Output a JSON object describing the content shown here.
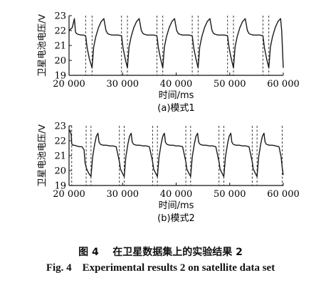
{
  "figure": {
    "caption_cn_number": "图 4",
    "caption_cn_text": "在卫星数据集上的实验结果 2",
    "caption_en_number": "Fig. 4",
    "caption_en_text": "Experimental results 2 on satellite data set"
  },
  "chart_data": [
    {
      "type": "line",
      "subtitle": "(a)模式1",
      "xlabel": "时间/ms",
      "ylabel": "卫星电池电压/V",
      "xlim": [
        20000,
        60000
      ],
      "ylim": [
        19,
        23
      ],
      "xticks": [
        20000,
        30000,
        40000,
        50000,
        60000
      ],
      "xtick_labels": [
        "20 000",
        "30 000",
        "40 000",
        "50 000",
        "60 000"
      ],
      "yticks": [
        19,
        20,
        21,
        22,
        23
      ],
      "ytick_labels": [
        "19",
        "20",
        "21",
        "22",
        "23"
      ],
      "dashed_vlines": [
        23100,
        24300,
        29800,
        30900,
        36400,
        37500,
        43000,
        44100,
        49600,
        50700,
        56200,
        57300
      ],
      "series": [
        {
          "x": [
            20000,
            20300,
            20600,
            21000,
            21200,
            21400,
            21700,
            22200,
            22700,
            23100,
            23400,
            23800,
            24300,
            24600,
            25000,
            25500,
            26000,
            26500,
            26900,
            27200,
            27500,
            28000,
            28600,
            29200,
            29800,
            30100,
            30500,
            30900,
            31200,
            31600,
            32100,
            32600,
            33100,
            33500,
            33800,
            34100,
            34600,
            35200,
            35800,
            36400,
            36700,
            37100,
            37500,
            37800,
            38200,
            38700,
            39200,
            39700,
            40100,
            40400,
            40700,
            41200,
            41800,
            42400,
            43000,
            43300,
            43700,
            44100,
            44400,
            44800,
            45300,
            45800,
            46300,
            46700,
            47000,
            47300,
            47800,
            48400,
            49000,
            49600,
            49900,
            50300,
            50700,
            51000,
            51400,
            51900,
            52400,
            52900,
            53300,
            53600,
            53900,
            54400,
            55000,
            55600,
            56200,
            56500,
            56900,
            57300,
            57600,
            58000,
            58500,
            59000,
            59500,
            59700
          ],
          "y": [
            22.0,
            22.1,
            22.2,
            22.8,
            21.9,
            21.8,
            21.75,
            21.7,
            21.7,
            21.65,
            20.8,
            20.1,
            19.5,
            20.9,
            21.6,
            22.2,
            22.6,
            22.8,
            22.0,
            21.8,
            21.75,
            21.7,
            21.7,
            21.7,
            21.65,
            20.8,
            20.1,
            19.5,
            20.9,
            21.6,
            22.2,
            22.6,
            22.8,
            22.0,
            21.8,
            21.75,
            21.7,
            21.7,
            21.7,
            21.65,
            20.8,
            20.1,
            19.5,
            20.9,
            21.6,
            22.2,
            22.6,
            22.8,
            22.0,
            21.8,
            21.75,
            21.7,
            21.7,
            21.7,
            21.65,
            20.8,
            20.1,
            19.5,
            20.9,
            21.6,
            22.2,
            22.6,
            22.8,
            22.0,
            21.8,
            21.75,
            21.7,
            21.7,
            21.7,
            21.65,
            20.8,
            20.1,
            19.5,
            20.9,
            21.6,
            22.2,
            22.6,
            22.8,
            22.0,
            21.8,
            21.75,
            21.7,
            21.7,
            21.7,
            21.65,
            20.8,
            20.1,
            19.5,
            20.9,
            21.6,
            22.2,
            22.6,
            22.8,
            22.0
          ]
        },
        {
          "x": [
            59700,
            59800,
            59900,
            60000
          ],
          "y": [
            22.0,
            21.2,
            20.3,
            19.5
          ]
        }
      ]
    },
    {
      "type": "line",
      "subtitle": "(b)模式2",
      "xlabel": "时间/ms",
      "ylabel": "卫星电池电压/V",
      "xlim": [
        20000,
        60000
      ],
      "ylim": [
        19,
        23
      ],
      "xticks": [
        20000,
        30000,
        40000,
        50000,
        60000
      ],
      "xtick_labels": [
        "20 000",
        "30 000",
        "40 000",
        "50 000",
        "60 000"
      ],
      "yticks": [
        19,
        20,
        21,
        22,
        23
      ],
      "ytick_labels": [
        "19",
        "20",
        "21",
        "22",
        "23"
      ],
      "dashed_vlines": [
        20500,
        23200,
        24100,
        29400,
        30300,
        35600,
        36500,
        41800,
        42700,
        48000,
        48900,
        54200,
        55100,
        59800
      ],
      "series": [
        {
          "x": [
            20000,
            20200,
            20400,
            20500,
            20700,
            21000,
            21400,
            21900,
            22400,
            22800,
            23000,
            23300,
            23700,
            24100,
            24400,
            24800,
            25100,
            25400,
            25600,
            25900,
            26400,
            27000,
            27600,
            28200,
            28800,
            29400,
            29600,
            30000,
            30300,
            30600,
            31000,
            31300,
            31600,
            31800,
            32100,
            32600,
            33200,
            33800,
            34400,
            35000,
            35600,
            35800,
            36200,
            36500,
            36800,
            37200,
            37500,
            37800,
            38000,
            38300,
            38800,
            39400,
            40000,
            40600,
            41200,
            41800,
            42000,
            42400,
            42700,
            43000,
            43400,
            43700,
            44000,
            44200,
            44500,
            45000,
            45600,
            46200,
            46800,
            47400,
            48000,
            48200,
            48600,
            48900,
            49200,
            49600,
            49900,
            50200,
            50400,
            50700,
            51200,
            51800,
            52400,
            53000,
            53600,
            54200,
            54400,
            54800,
            55100,
            55400,
            55800,
            56100,
            56400,
            56600,
            56900,
            57400,
            58000,
            58600,
            59200,
            59600,
            59800,
            60000
          ],
          "y": [
            22.6,
            22.7,
            22.4,
            21.8,
            21.7,
            21.7,
            21.65,
            21.6,
            21.6,
            21.4,
            20.5,
            20.1,
            19.8,
            19.6,
            20.9,
            21.8,
            22.3,
            22.5,
            21.9,
            21.75,
            21.7,
            21.7,
            21.65,
            21.65,
            21.6,
            20.6,
            20.1,
            19.8,
            19.6,
            20.9,
            21.8,
            22.3,
            22.5,
            21.9,
            21.75,
            21.7,
            21.7,
            21.65,
            21.65,
            21.6,
            20.6,
            20.1,
            19.8,
            19.6,
            20.9,
            21.8,
            22.3,
            22.5,
            21.9,
            21.75,
            21.7,
            21.7,
            21.65,
            21.65,
            21.6,
            20.6,
            20.1,
            19.8,
            19.6,
            20.9,
            21.8,
            22.3,
            22.5,
            21.9,
            21.75,
            21.7,
            21.7,
            21.65,
            21.65,
            21.6,
            20.6,
            20.1,
            19.8,
            19.6,
            20.9,
            21.8,
            22.3,
            22.5,
            21.9,
            21.75,
            21.7,
            21.7,
            21.65,
            21.65,
            21.6,
            20.6,
            20.1,
            19.8,
            19.6,
            20.9,
            21.8,
            22.3,
            22.5,
            21.9,
            21.75,
            21.7,
            21.7,
            21.65,
            21.6,
            20.9,
            20.2,
            19.7
          ]
        }
      ]
    }
  ]
}
